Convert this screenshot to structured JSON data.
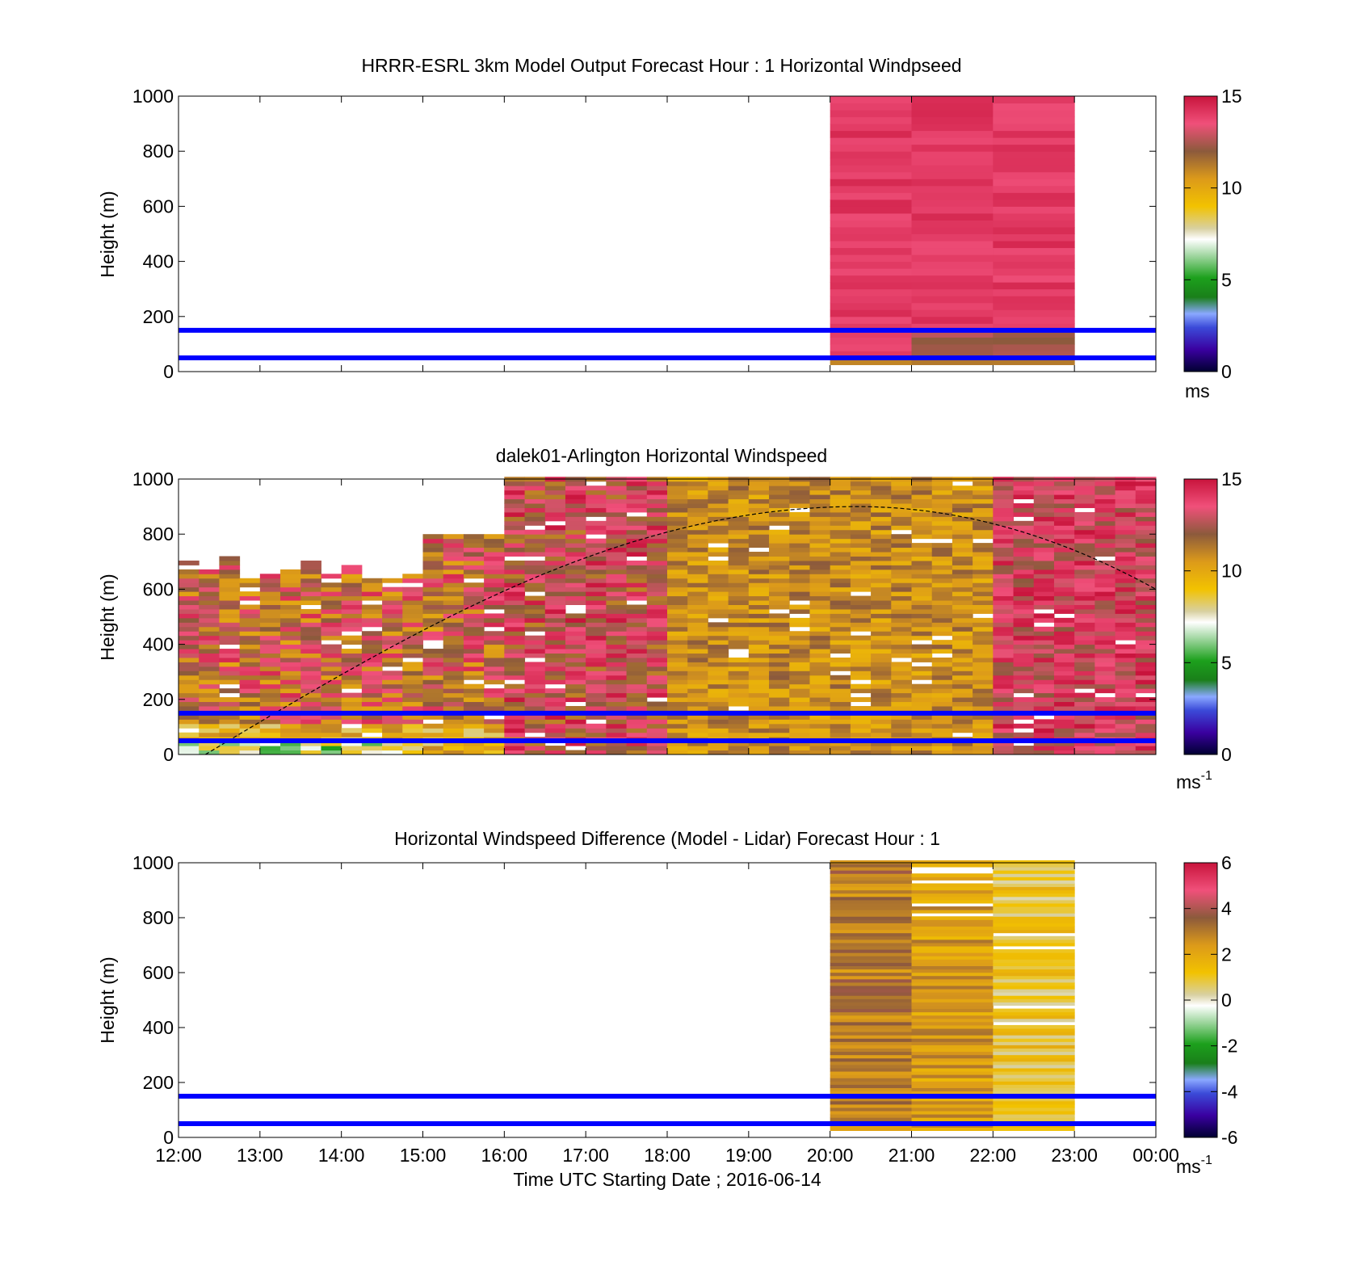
{
  "figure": {
    "xlabel": "Time UTC  Starting Date ; 2016-06-14",
    "x_ticks": [
      "12:00",
      "13:00",
      "14:00",
      "15:00",
      "16:00",
      "17:00",
      "18:00",
      "19:00",
      "20:00",
      "21:00",
      "22:00",
      "23:00",
      "00:00"
    ],
    "y_ticks": [
      "0",
      "200",
      "400",
      "600",
      "800",
      "1000"
    ]
  },
  "chart_data": [
    {
      "type": "heatmap",
      "title": "HRRR-ESRL 3km Model Output   Forecast Hour : 1 Horizontal Windpseed",
      "xlabel": "",
      "ylabel": "Height (m)",
      "xlim": [
        "12:00",
        "00:00"
      ],
      "ylim": [
        0,
        1000
      ],
      "colorbar": {
        "min": 0,
        "max": 15,
        "ticks": [
          "0",
          "5",
          "10",
          "15"
        ],
        "unit": "ms",
        "unit_sup": ""
      },
      "reference_lines_m": [
        50,
        150
      ],
      "reference_line_color": "#0000ff",
      "data_hours": [
        "20:00",
        "21:00",
        "22:00"
      ],
      "approx_values_ms": {
        "20:00": {
          "near_surface": 10,
          "above_100m": 14
        },
        "21:00": {
          "near_surface": 11,
          "above_100m": 14
        },
        "22:00": {
          "near_surface": 11,
          "above_100m": 14
        }
      }
    },
    {
      "type": "heatmap",
      "title": "dalek01-Arlington  Horizontal Windspeed",
      "xlabel": "",
      "ylabel": "Height (m)",
      "xlim": [
        "12:00",
        "00:00"
      ],
      "ylim": [
        0,
        1000
      ],
      "colorbar": {
        "min": 0,
        "max": 15,
        "ticks": [
          "0",
          "5",
          "10",
          "15"
        ],
        "unit": "ms",
        "unit_sup": "-1"
      },
      "reference_lines_m": [
        50,
        150
      ],
      "reference_line_color": "#0000ff",
      "boundary_curve": {
        "style": "dashed",
        "color": "#000000",
        "peak_time": "20:20",
        "peak_height_m": 900,
        "start_time": "12:20",
        "end_time": "00:00",
        "end_height_m": 600
      },
      "approx_coverage_top_m": {
        "12:00-15:00": 650,
        "15:00-16:00": 850,
        "16:00-00:00": 1000
      },
      "approx_values_ms": {
        "12:00-16:00": "8-14",
        "16:00-18:00": "11-15",
        "18:00-22:00": "9-12",
        "22:00-00:00": "12-15"
      }
    },
    {
      "type": "heatmap",
      "title": "Horizontal Windspeed Difference (Model - Lidar) Forecast Hour : 1",
      "xlabel": "Time UTC  Starting Date ; 2016-06-14",
      "ylabel": "Height (m)",
      "xlim": [
        "12:00",
        "00:00"
      ],
      "ylim": [
        0,
        1000
      ],
      "colorbar": {
        "min": -6,
        "max": 6,
        "ticks": [
          "-6",
          "-4",
          "-2",
          "0",
          "2",
          "4",
          "6"
        ],
        "unit": "ms",
        "unit_sup": "-1"
      },
      "reference_lines_m": [
        50,
        150
      ],
      "reference_line_color": "#0000ff",
      "data_hours": [
        "20:00",
        "21:00",
        "22:00"
      ],
      "approx_values_ms": {
        "20:00": "2-4",
        "21:00": "2-3",
        "22:00": "0-2"
      }
    }
  ]
}
